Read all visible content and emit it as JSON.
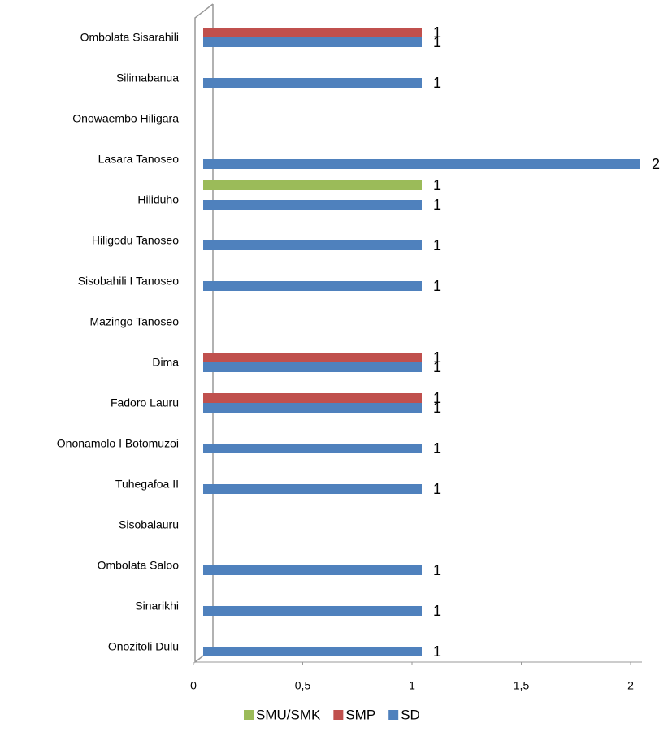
{
  "chart_data": {
    "type": "bar",
    "categories": [
      "Ombolata Sisarahili",
      "Silimabanua",
      "Onowaembo Hiligara",
      "Lasara Tanoseo",
      "Hiliduho",
      "Hiligodu Tanoseo",
      "Sisobahili I Tanoseo",
      "Mazingo Tanoseo",
      "Dima",
      "Fadoro Lauru",
      "Ononamolo I Botomuzoi",
      "Tuhegafoa II",
      "Sisobalauru",
      "Ombolata Saloo",
      "Sinarikhi",
      "Onozitoli Dulu"
    ],
    "series": [
      {
        "name": "SMU/SMK",
        "color": "#9bbb59",
        "values": [
          null,
          null,
          null,
          null,
          1,
          null,
          null,
          null,
          null,
          null,
          null,
          null,
          null,
          null,
          null,
          null
        ]
      },
      {
        "name": "SMP",
        "color": "#c0504d",
        "values": [
          1,
          null,
          null,
          null,
          null,
          null,
          null,
          null,
          1,
          1,
          null,
          null,
          null,
          null,
          null,
          null
        ]
      },
      {
        "name": "SD",
        "color": "#4f81bd",
        "values": [
          1,
          1,
          null,
          2,
          1,
          1,
          1,
          null,
          1,
          1,
          1,
          1,
          null,
          1,
          1,
          1
        ]
      }
    ],
    "xlim": [
      0,
      2
    ],
    "xticks": [
      0,
      {
        "value": 0.5,
        "label": "0,5"
      },
      1,
      {
        "value": 1.5,
        "label": "1,5"
      },
      2
    ],
    "legend": "bottom"
  }
}
